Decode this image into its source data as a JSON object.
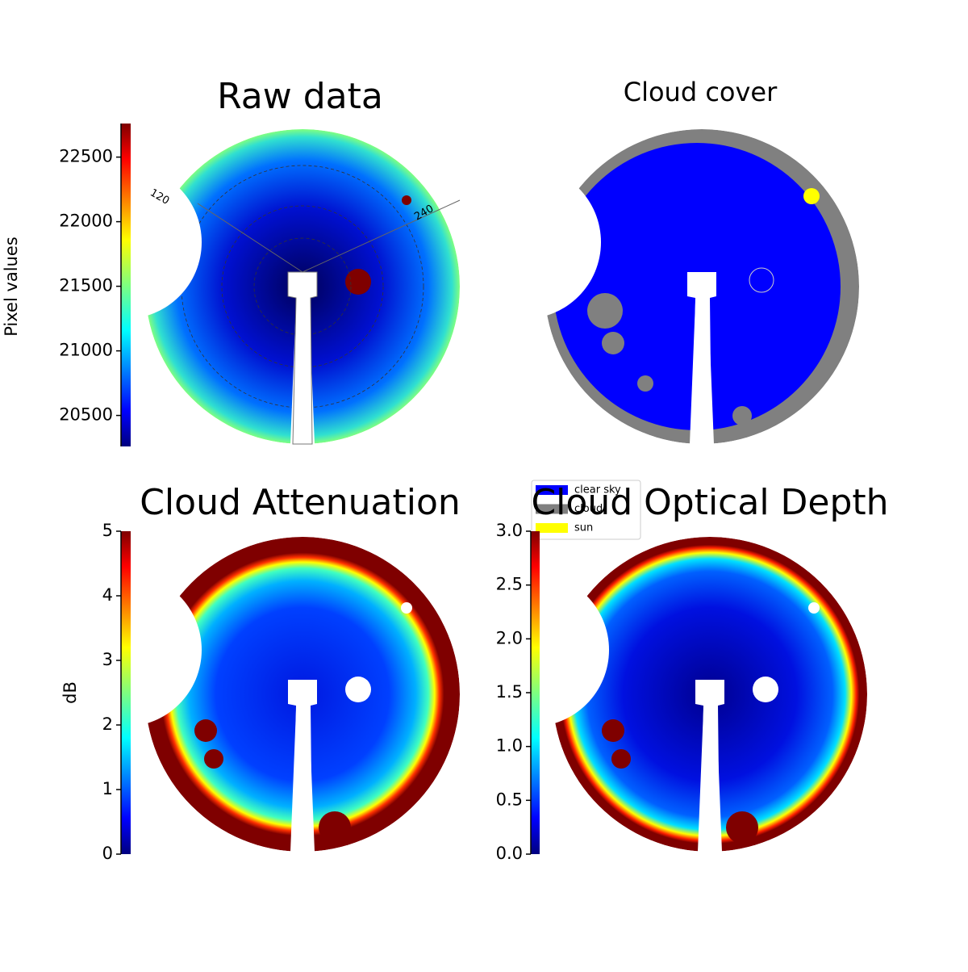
{
  "chart_data": [
    {
      "type": "image",
      "title": "Raw data",
      "ylabel": "Pixel values",
      "ylim": [
        20260,
        22760
      ],
      "yticks": [
        20500,
        21000,
        21500,
        22000,
        22500
      ],
      "colormap": "jet",
      "annotations": [
        "120",
        "240"
      ]
    },
    {
      "type": "image",
      "title": "Cloud cover",
      "series": [
        {
          "name": "clear sky",
          "color": "#0000ff"
        },
        {
          "name": "cloud",
          "color": "#808080"
        },
        {
          "name": "sun",
          "color": "#ffff00"
        }
      ]
    },
    {
      "type": "image",
      "title": "Cloud Attenuation",
      "ylabel": "dB",
      "ylim": [
        0,
        5
      ],
      "yticks": [
        0,
        1,
        2,
        3,
        4,
        5
      ],
      "colormap": "jet"
    },
    {
      "type": "image",
      "title": "Cloud Optical Depth",
      "ylim": [
        0,
        3
      ],
      "yticks": [
        {
          "value": 0,
          "label": "0.0"
        },
        0.5,
        {
          "value": 1,
          "label": "1.0"
        },
        1.5,
        {
          "value": 2,
          "label": "2.0"
        },
        2.5,
        {
          "value": 3,
          "label": "3.0"
        }
      ],
      "colormap": "jet"
    }
  ]
}
